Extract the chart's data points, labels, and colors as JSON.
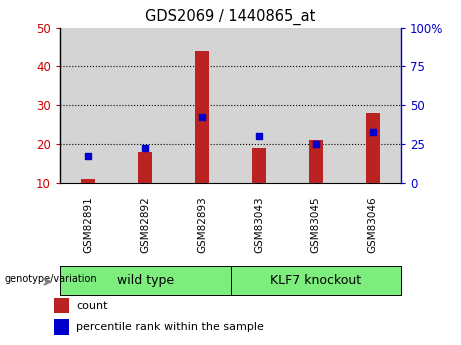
{
  "title": "GDS2069 / 1440865_at",
  "categories": [
    "GSM82891",
    "GSM82892",
    "GSM82893",
    "GSM83043",
    "GSM83045",
    "GSM83046"
  ],
  "count_values": [
    11,
    18,
    44,
    19,
    21,
    28
  ],
  "percentile_values": [
    17,
    19,
    27,
    22,
    20,
    23
  ],
  "ylim_left": [
    10,
    50
  ],
  "ylim_right": [
    0,
    100
  ],
  "yticks_left": [
    10,
    20,
    30,
    40,
    50
  ],
  "yticks_right": [
    0,
    25,
    50,
    75,
    100
  ],
  "bar_color": "#bb2222",
  "dot_color": "#0000cc",
  "bar_bottom": 10,
  "group_labels": [
    "wild type",
    "KLF7 knockout"
  ],
  "group_color": "#7ded7d",
  "group_label": "genotype/variation",
  "legend_count": "count",
  "legend_percentile": "percentile rank within the sample",
  "title_color": "#000000",
  "left_axis_color": "#cc0000",
  "right_axis_color": "#0000cc",
  "background_color": "#ffffff",
  "plot_bg_color": "#ffffff",
  "col_bg_color": "#d4d4d4"
}
